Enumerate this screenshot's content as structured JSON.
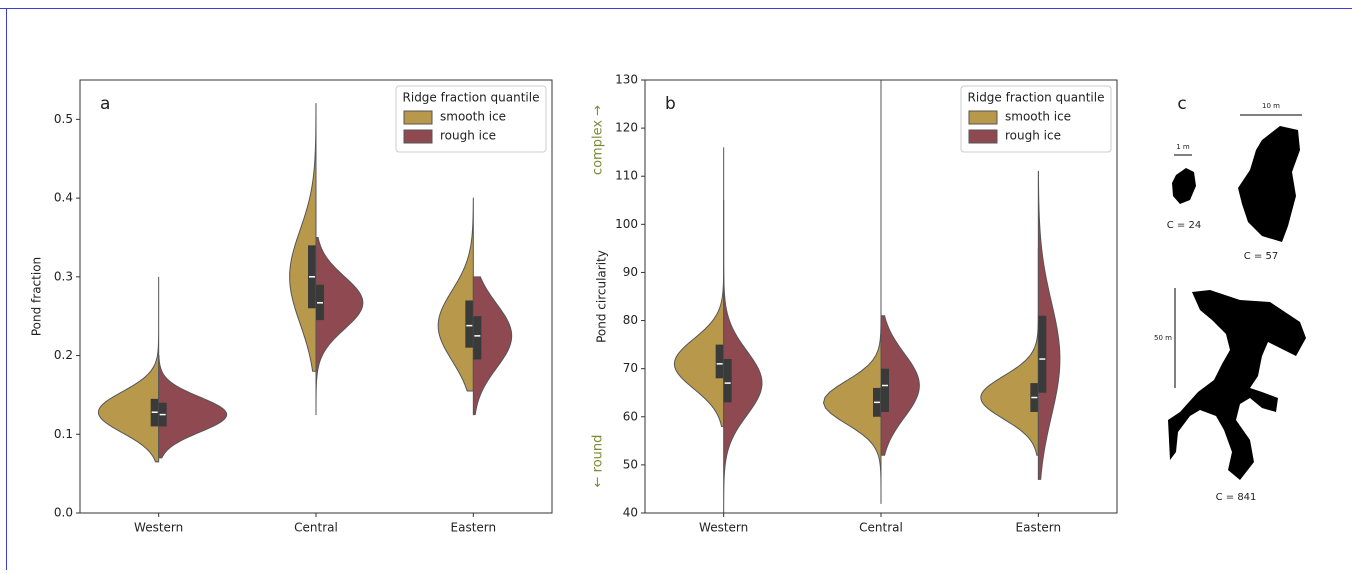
{
  "chart_data": [
    {
      "type": "violin",
      "panel": "a",
      "ylabel": "Pond fraction",
      "categories": [
        "Western",
        "Central",
        "Eastern"
      ],
      "ylim": [
        0,
        0.55
      ],
      "yticks": [
        {
          "value": 0,
          "label": "0.0"
        },
        0.1,
        0.2,
        0.3,
        0.4,
        0.5
      ],
      "legend_title": "Ridge fraction quantile",
      "legend": "upper right",
      "series": [
        {
          "name": "smooth ice",
          "color": "#b8994c",
          "min": [
            0.065,
            0.18,
            0.155
          ],
          "q1": [
            0.11,
            0.26,
            0.21
          ],
          "median": [
            0.128,
            0.3,
            0.238
          ],
          "q3": [
            0.145,
            0.34,
            0.27
          ],
          "max": [
            0.3,
            0.52,
            0.4
          ]
        },
        {
          "name": "rough ice",
          "color": "#8e4a50",
          "min": [
            0.07,
            0.125,
            0.125
          ],
          "q1": [
            0.11,
            0.245,
            0.195
          ],
          "median": [
            0.125,
            0.267,
            0.225
          ],
          "q3": [
            0.14,
            0.29,
            0.25
          ],
          "max": [
            0.2,
            0.35,
            0.3
          ]
        }
      ]
    },
    {
      "type": "violin",
      "panel": "b",
      "ylabel": "Pond circularity",
      "annotations": [
        "complex →",
        "← round"
      ],
      "categories": [
        "Western",
        "Central",
        "Eastern"
      ],
      "ylim": [
        40,
        130
      ],
      "yticks": [
        40,
        50,
        60,
        70,
        80,
        90,
        100,
        110,
        120,
        130
      ],
      "legend_title": "Ridge fraction quantile",
      "legend": "upper right",
      "series": [
        {
          "name": "smooth ice",
          "color": "#b8994c",
          "min": [
            58,
            42,
            52
          ],
          "q1": [
            68,
            60,
            61
          ],
          "median": [
            71,
            63,
            64
          ],
          "q3": [
            75,
            66,
            67
          ],
          "max": [
            116,
            130,
            95
          ]
        },
        {
          "name": "rough ice",
          "color": "#8e4a50",
          "min": [
            40,
            52,
            47
          ],
          "q1": [
            63,
            61,
            65
          ],
          "median": [
            67,
            66.5,
            72
          ],
          "q3": [
            72,
            70,
            81
          ],
          "max": [
            105,
            81,
            111
          ]
        }
      ]
    }
  ],
  "panel_c": {
    "panel": "c",
    "scale_bars": [
      "1 m",
      "10 m",
      "50 m"
    ],
    "labels": [
      "C = 24",
      "C = 57",
      "C = 841"
    ]
  }
}
